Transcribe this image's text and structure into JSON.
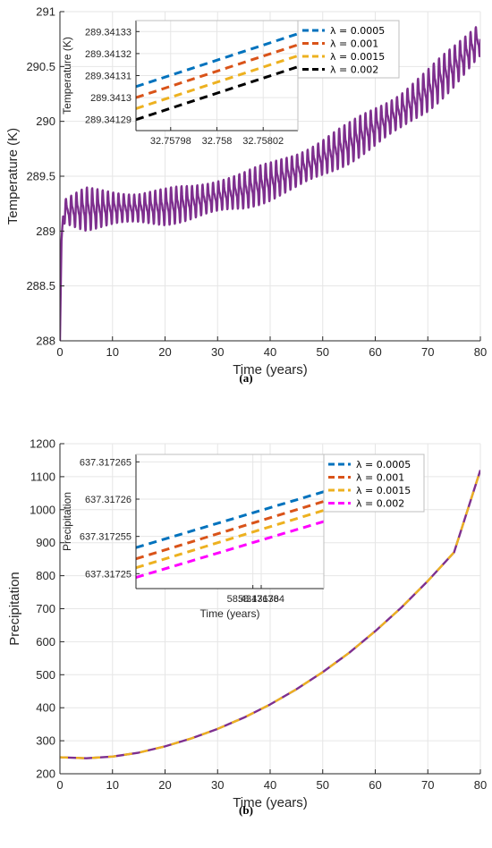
{
  "chart_data": [
    {
      "panel": "a",
      "caption": "(a)",
      "type": "line",
      "xlabel": "Time (years)",
      "ylabel": "Temperature (K)",
      "xlim": [
        0,
        80
      ],
      "ylim": [
        288,
        291
      ],
      "xticks": [
        "0",
        "10",
        "20",
        "30",
        "40",
        "50",
        "60",
        "70",
        "80"
      ],
      "yticks": [
        "288",
        "288.5",
        "289",
        "289.5",
        "290",
        "290.5",
        "291"
      ],
      "grid": true,
      "series": [
        {
          "color": "#7e2f8e",
          "description": "oscillating temperature, annual cycle",
          "x": [
            0,
            0.3,
            0.6,
            1,
            5,
            10,
            15,
            20,
            25,
            30,
            35,
            40,
            45,
            50,
            55,
            60,
            65,
            70,
            75,
            80
          ],
          "y": [
            288.0,
            288.9,
            289.15,
            289.18,
            289.2,
            289.21,
            289.21,
            289.22,
            289.26,
            289.32,
            289.37,
            289.45,
            289.55,
            289.67,
            289.8,
            289.95,
            290.1,
            290.28,
            290.5,
            290.75
          ],
          "amplitude": [
            0,
            0.05,
            0.1,
            0.12,
            0.2,
            0.18,
            0.16,
            0.17,
            0.17,
            0.18,
            0.18,
            0.18,
            0.19,
            0.19,
            0.19,
            0.2,
            0.2,
            0.2,
            0.2,
            0.2
          ]
        }
      ],
      "inset": {
        "ylabel": "Temperature (K)",
        "xlabel": "",
        "xlim": [
          32.757965,
          32.758035
        ],
        "ylim": [
          289.341285,
          289.341335
        ],
        "xticks": [
          "32.75798",
          "32.758",
          "32.75802"
        ],
        "xtick_values": [
          32.75798,
          32.758,
          32.75802
        ],
        "yticks": [
          "289.34129",
          "289.3413",
          "289.34131",
          "289.34132",
          "289.34133"
        ],
        "ytick_values": [
          289.34129,
          289.3413,
          289.34131,
          289.34132,
          289.34133
        ],
        "series": [
          {
            "name": "λ = 0.0005",
            "color": "#0072bd",
            "x": [
              32.757965,
              32.758035
            ],
            "y": [
              289.341305,
              289.341329
            ]
          },
          {
            "name": "λ = 0.001",
            "color": "#d95319",
            "x": [
              32.757965,
              32.758035
            ],
            "y": [
              289.3413,
              289.341324
            ]
          },
          {
            "name": "λ = 0.0015",
            "color": "#edb120",
            "x": [
              32.757965,
              32.758035
            ],
            "y": [
              289.341295,
              289.341319
            ]
          },
          {
            "name": "λ = 0.002",
            "color": "#000000",
            "x": [
              32.757965,
              32.758035
            ],
            "y": [
              289.34129,
              289.341314
            ]
          }
        ],
        "legend": "top-right"
      }
    },
    {
      "panel": "b",
      "caption": "(b)",
      "type": "line",
      "xlabel": "Time (years)",
      "ylabel": "Precipitation",
      "xlim": [
        0,
        80
      ],
      "ylim": [
        200,
        1200
      ],
      "xticks": [
        "0",
        "10",
        "20",
        "30",
        "40",
        "50",
        "60",
        "70",
        "80"
      ],
      "yticks": [
        "200",
        "300",
        "400",
        "500",
        "600",
        "700",
        "800",
        "900",
        "1000",
        "1100",
        "1200"
      ],
      "grid": true,
      "series": [
        {
          "color": "#7e2f8e",
          "dash_color": "#edb120",
          "x": [
            0,
            5,
            10,
            15,
            20,
            25,
            30,
            35,
            40,
            45,
            50,
            55,
            60,
            65,
            70,
            75,
            80
          ],
          "y": [
            250,
            247,
            252,
            264,
            283,
            307,
            336,
            370,
            410,
            456,
            508,
            566,
            632,
            704,
            784,
            871,
            1120
          ]
        }
      ],
      "inset": {
        "ylabel": "Precipitation",
        "xlabel": "Time (years)",
        "xlim": [
          58.431761,
          58.4317655
        ],
        "ylim": [
          637.317248,
          637.317266
        ],
        "xticks": [
          "58.4317638",
          "58.431764"
        ],
        "xtick_values": [
          58.4317638,
          58.431764
        ],
        "yticks": [
          "637.31725",
          "637.317255",
          "637.31726",
          "637.317265"
        ],
        "ytick_values": [
          637.31725,
          637.317255,
          637.31726,
          637.317265
        ],
        "series": [
          {
            "name": "λ = 0.0005",
            "color": "#0072bd",
            "x": [
              58.431761,
              58.4317655
            ],
            "y": [
              637.3172535,
              637.317261
            ]
          },
          {
            "name": "λ = 0.001",
            "color": "#d95319",
            "x": [
              58.431761,
              58.4317655
            ],
            "y": [
              637.317252,
              637.3172597
            ]
          },
          {
            "name": "λ = 0.0015",
            "color": "#edb120",
            "x": [
              58.431761,
              58.4317655
            ],
            "y": [
              637.3172508,
              637.3172585
            ]
          },
          {
            "name": "λ = 0.002",
            "color": "#ff00ff",
            "x": [
              58.431761,
              58.4317655
            ],
            "y": [
              637.3172495,
              637.317257
            ]
          }
        ],
        "legend": "top-right"
      }
    }
  ]
}
